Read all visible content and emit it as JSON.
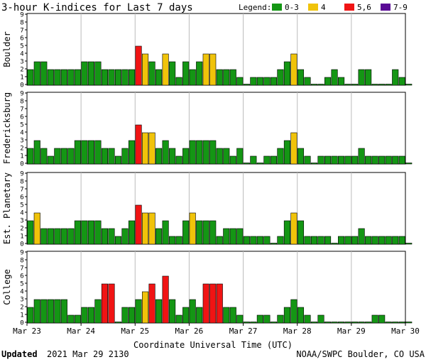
{
  "title": "3-hour K-indices for Last 7 days",
  "legend": {
    "label": "Legend:",
    "items": [
      {
        "label": "0-3",
        "color": "#149614"
      },
      {
        "label": "4",
        "color": "#f0c30a"
      },
      {
        "label": "5,6",
        "color": "#f01414"
      },
      {
        "label": "7-9",
        "color": "#5a0a96"
      }
    ]
  },
  "xlabel": "Coordinate Universal Time (UTC)",
  "footer": {
    "updated_label": "Updated",
    "updated_value": "2021 Mar 29 2130",
    "source": "NOAA/SWPC Boulder, CO USA"
  },
  "chart_data": {
    "type": "bar",
    "x_tick_labels": [
      "Mar 23",
      "Mar 24",
      "Mar 25",
      "Mar 26",
      "Mar 27",
      "Mar 28",
      "Mar 29",
      "Mar 30"
    ],
    "ylim": [
      0,
      9
    ],
    "y_ticks": [
      0,
      1,
      2,
      3,
      4,
      5,
      6,
      7,
      8,
      9
    ],
    "interval_hours": 3,
    "color_scale": {
      "0-3": "#149614",
      "4": "#f0c30a",
      "5-6": "#f01414",
      "7-9": "#5a0a96"
    },
    "series": [
      {
        "name": "Boulder",
        "values": [
          2,
          3,
          3,
          2,
          2,
          2,
          2,
          2,
          3,
          3,
          3,
          2,
          2,
          2,
          2,
          2,
          5,
          4,
          3,
          2,
          4,
          3,
          1,
          3,
          2,
          3,
          4,
          4,
          2,
          2,
          2,
          1,
          0,
          1,
          1,
          1,
          1,
          2,
          3,
          4,
          2,
          1,
          0,
          0,
          1,
          2,
          1,
          0,
          0,
          2,
          2,
          0,
          0,
          0,
          2,
          1,
          0
        ]
      },
      {
        "name": "Fredericksburg",
        "values": [
          2,
          3,
          2,
          1,
          2,
          2,
          2,
          3,
          3,
          3,
          3,
          2,
          2,
          1,
          2,
          3,
          5,
          4,
          4,
          2,
          3,
          2,
          1,
          2,
          3,
          3,
          3,
          3,
          2,
          2,
          1,
          2,
          0,
          1,
          0,
          1,
          1,
          2,
          3,
          4,
          2,
          1,
          0,
          1,
          1,
          1,
          1,
          1,
          1,
          2,
          1,
          1,
          1,
          1,
          1,
          1,
          0
        ]
      },
      {
        "name": "Est. Planetary",
        "values": [
          3,
          4,
          2,
          2,
          2,
          2,
          2,
          3,
          3,
          3,
          3,
          2,
          2,
          1,
          2,
          3,
          5,
          4,
          4,
          2,
          3,
          1,
          1,
          3,
          4,
          3,
          3,
          3,
          1,
          2,
          2,
          2,
          1,
          1,
          1,
          1,
          0,
          1,
          3,
          4,
          3,
          1,
          1,
          1,
          1,
          0,
          1,
          1,
          1,
          2,
          1,
          1,
          1,
          1,
          1,
          1,
          0
        ]
      },
      {
        "name": "College",
        "values": [
          2,
          3,
          3,
          3,
          3,
          3,
          1,
          1,
          2,
          2,
          3,
          5,
          5,
          0,
          2,
          2,
          3,
          4,
          5,
          3,
          6,
          3,
          1,
          2,
          3,
          2,
          5,
          5,
          5,
          2,
          2,
          1,
          0,
          0,
          1,
          1,
          0,
          1,
          2,
          3,
          2,
          1,
          0,
          1,
          0,
          0,
          0,
          0,
          0,
          0,
          0,
          1,
          1,
          0,
          0,
          0,
          0
        ]
      }
    ]
  }
}
